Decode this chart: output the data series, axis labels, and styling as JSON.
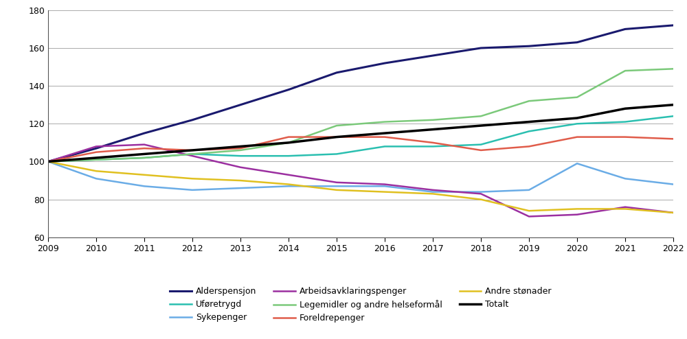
{
  "years": [
    2009,
    2010,
    2011,
    2012,
    2013,
    2014,
    2015,
    2016,
    2017,
    2018,
    2019,
    2020,
    2021,
    2022
  ],
  "series": {
    "Alderspensjon": [
      100,
      107,
      115,
      122,
      130,
      138,
      147,
      152,
      156,
      160,
      161,
      163,
      170,
      172
    ],
    "Uføretrygd": [
      100,
      101,
      102,
      104,
      103,
      103,
      104,
      108,
      108,
      109,
      116,
      120,
      121,
      124
    ],
    "Sykepenger": [
      100,
      91,
      87,
      85,
      86,
      87,
      87,
      87,
      84,
      84,
      85,
      99,
      91,
      88
    ],
    "Arbeidsavklaringspenger": [
      100,
      108,
      109,
      103,
      97,
      93,
      89,
      88,
      85,
      83,
      71,
      72,
      76,
      73
    ],
    "Legemidler og andre helseformål": [
      100,
      101,
      102,
      104,
      106,
      110,
      119,
      121,
      122,
      124,
      132,
      134,
      148,
      149
    ],
    "Foreldrepenger": [
      100,
      105,
      107,
      106,
      107,
      113,
      113,
      113,
      110,
      106,
      108,
      113,
      113,
      112
    ],
    "Andre stønader": [
      100,
      95,
      93,
      91,
      90,
      88,
      85,
      84,
      83,
      80,
      74,
      75,
      75,
      73
    ],
    "Totalt": [
      100,
      102,
      104,
      106,
      108,
      110,
      113,
      115,
      117,
      119,
      121,
      123,
      128,
      130
    ]
  },
  "colors": {
    "Alderspensjon": "#1a1a6e",
    "Uføretrygd": "#2abfb0",
    "Sykepenger": "#6aace6",
    "Arbeidsavklaringspenger": "#9b2fa0",
    "Legemidler og andre helseformål": "#7bc97a",
    "Foreldrepenger": "#e05c4a",
    "Andre stønader": "#e0c020",
    "Totalt": "#000000"
  },
  "linewidths": {
    "Alderspensjon": 2.2,
    "Uføretrygd": 1.8,
    "Sykepenger": 1.8,
    "Arbeidsavklaringspenger": 1.8,
    "Legemidler og andre helseformål": 1.8,
    "Foreldrepenger": 1.8,
    "Andre stønader": 1.8,
    "Totalt": 2.5
  },
  "ylim": [
    60,
    180
  ],
  "yticks": [
    60,
    80,
    100,
    120,
    140,
    160,
    180
  ],
  "legend_col1": [
    "Alderspensjon",
    "Arbeidsavklaringspenger",
    "Andre stønader"
  ],
  "legend_col2": [
    "Uføretrygd",
    "Legemidler og andre helseformål",
    "Totalt"
  ],
  "legend_col3": [
    "Sykepenger",
    "Foreldrepenger"
  ]
}
